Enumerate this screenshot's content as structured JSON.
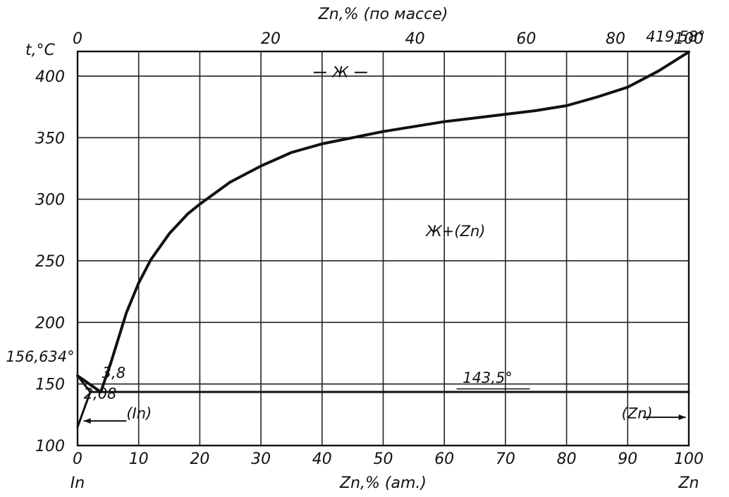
{
  "chart_data": {
    "type": "line",
    "title": "",
    "y_axis": {
      "label": "t,°C",
      "ylim": [
        100,
        420
      ],
      "ticks": [
        100,
        150,
        200,
        250,
        300,
        350,
        400
      ],
      "tick_labels": [
        "100",
        "150",
        "200",
        "250",
        "300",
        "350",
        "400"
      ]
    },
    "x_axis_bottom": {
      "label": "Zn,% (am.)",
      "xlim": [
        0,
        100
      ],
      "ticks": [
        0,
        10,
        20,
        30,
        40,
        50,
        60,
        70,
        80,
        90,
        100
      ],
      "tick_labels": [
        "0",
        "10",
        "20",
        "30",
        "40",
        "50",
        "60",
        "70",
        "80",
        "90",
        "100"
      ],
      "left_end_label": "In",
      "right_end_label": "Zn"
    },
    "x_axis_top": {
      "label": "Zn,% (по массе)",
      "tick_labels": [
        "0",
        "20",
        "40",
        "60",
        "80",
        "100"
      ],
      "tick_positions_at": [
        0,
        31.6,
        55.2,
        73.4,
        88.0,
        100
      ]
    },
    "grid": true,
    "series": [
      {
        "role": "liquidus",
        "x": [
          0,
          3.8,
          5.5,
          8,
          10,
          12,
          15,
          18,
          20,
          25,
          30,
          35,
          40,
          45,
          50,
          55,
          60,
          65,
          70,
          75,
          80,
          85,
          90,
          95,
          100
        ],
        "y": [
          156.634,
          143.5,
          168,
          208,
          232,
          251,
          272,
          288,
          296,
          314,
          327,
          338,
          345,
          350,
          355,
          359,
          363,
          366,
          369,
          372,
          376,
          383,
          391,
          404,
          419.58
        ]
      },
      {
        "role": "solidus-in",
        "x": [
          0,
          2.08,
          3.8
        ],
        "y": [
          156.634,
          143.5,
          143.5
        ]
      },
      {
        "role": "eutectic",
        "x": [
          2.08,
          100
        ],
        "y": [
          143.5,
          143.5
        ]
      },
      {
        "role": "in-solvus",
        "x": [
          0,
          2.08
        ],
        "y": [
          115,
          143.5
        ]
      }
    ],
    "annotations": [
      {
        "text": "Ж",
        "x": 43,
        "y": 399
      },
      {
        "text": "Ж+(Zn)",
        "x": 57,
        "y": 270
      },
      {
        "text": "419,58°",
        "x": 93,
        "y": 428
      },
      {
        "text": "156,634°",
        "x": -0.5,
        "y": 168
      },
      {
        "text": "3,8",
        "x": 4,
        "y": 155
      },
      {
        "text": "2,08",
        "x": 1,
        "y": 138
      },
      {
        "text": "143,5°",
        "x": 63,
        "y": 151
      },
      {
        "text": "(In)",
        "x": 8,
        "y": 122
      },
      {
        "text": "(Zn)",
        "x": 89,
        "y": 122
      }
    ]
  }
}
